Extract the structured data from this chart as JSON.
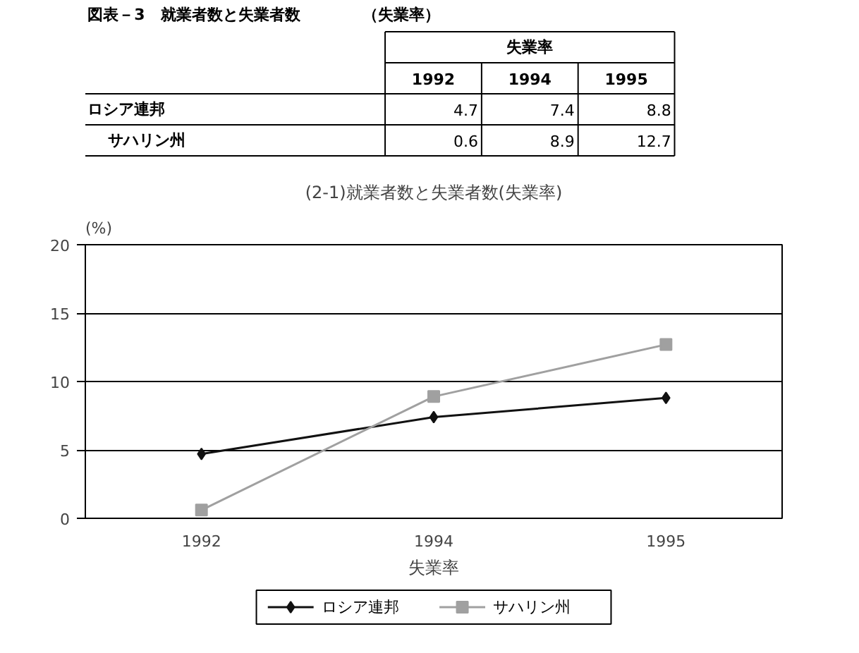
{
  "chart_data": {
    "type": "line",
    "title": "(2-1)就業者数と失業者数(失業率)",
    "subtitle": "図表－3　就業者数と失業者数　　　　（失業率）",
    "annotations": [
      "失業率",
      "4.7",
      "7.4",
      "8.8",
      "0.6",
      "8.9",
      "12.7"
    ],
    "xlabel": "失業率",
    "ylabel": "(%)",
    "categories": [
      "1992",
      "1994",
      "1995"
    ],
    "series": [
      {
        "name": "ロシア連邦",
        "color": "#111111",
        "marker": "diamond",
        "values": [
          4.7,
          7.4,
          8.8
        ]
      },
      {
        "name": "サハリン州",
        "color": "#a0a0a0",
        "marker": "square",
        "values": [
          0.6,
          8.9,
          12.7
        ]
      }
    ],
    "ylim": [
      0,
      20
    ],
    "yticks": [
      0,
      5,
      10,
      15,
      20
    ],
    "grid": "y",
    "legend": "bottom"
  }
}
